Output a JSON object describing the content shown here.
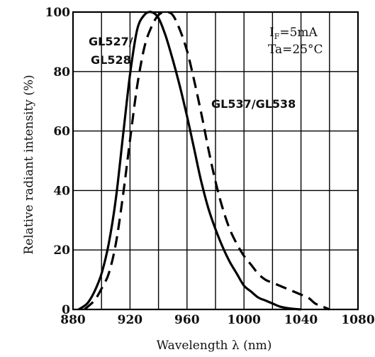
{
  "chart_data": {
    "type": "line",
    "title": "",
    "xlabel": "Wavelength λ (nm)",
    "ylabel": "Relative radiant intensity (%)",
    "xlim": [
      880,
      1080
    ],
    "ylim": [
      0,
      100
    ],
    "xticks": [
      880,
      920,
      960,
      1000,
      1040,
      1080
    ],
    "yticks": [
      0,
      20,
      40,
      60,
      80,
      100
    ],
    "grid": true,
    "conditions": [
      "I_F=5mA",
      "Ta=25°C"
    ],
    "series": [
      {
        "name": "GL527/GL528",
        "style": "solid",
        "x": [
          884,
          890,
          895,
          900,
          905,
          910,
          915,
          920,
          925,
          930,
          935,
          940,
          945,
          950,
          955,
          960,
          965,
          970,
          975,
          980,
          985,
          990,
          995,
          1000,
          1005,
          1010,
          1015,
          1020,
          1025,
          1030,
          1035,
          1040
        ],
        "y": [
          0,
          2,
          6,
          12,
          22,
          37,
          58,
          79,
          94,
          99,
          100,
          98,
          92,
          84,
          75,
          65,
          54,
          43,
          34,
          27,
          21,
          16,
          12,
          8,
          6,
          4,
          3,
          2,
          1,
          0.5,
          0.2,
          0
        ]
      },
      {
        "name": "GL537/GL538",
        "style": "dashed",
        "x": [
          888,
          895,
          900,
          905,
          910,
          915,
          920,
          925,
          930,
          935,
          940,
          945,
          950,
          955,
          960,
          965,
          970,
          975,
          980,
          985,
          990,
          995,
          1000,
          1005,
          1010,
          1015,
          1020,
          1025,
          1030,
          1035,
          1040,
          1045,
          1050,
          1055,
          1060
        ],
        "y": [
          0,
          3,
          7,
          12,
          22,
          38,
          57,
          75,
          88,
          95,
          99,
          100,
          99,
          94,
          87,
          77,
          66,
          54,
          43,
          34,
          27,
          22,
          18,
          15,
          12,
          10,
          9,
          8,
          7,
          6,
          5,
          4,
          2,
          1,
          0
        ]
      }
    ],
    "annotations": [
      {
        "text": "GL527/",
        "for": "GL527/GL528"
      },
      {
        "text": "GL528",
        "for": "GL527/GL528"
      },
      {
        "text": "GL537/GL538",
        "for": "GL537/GL538"
      }
    ]
  }
}
